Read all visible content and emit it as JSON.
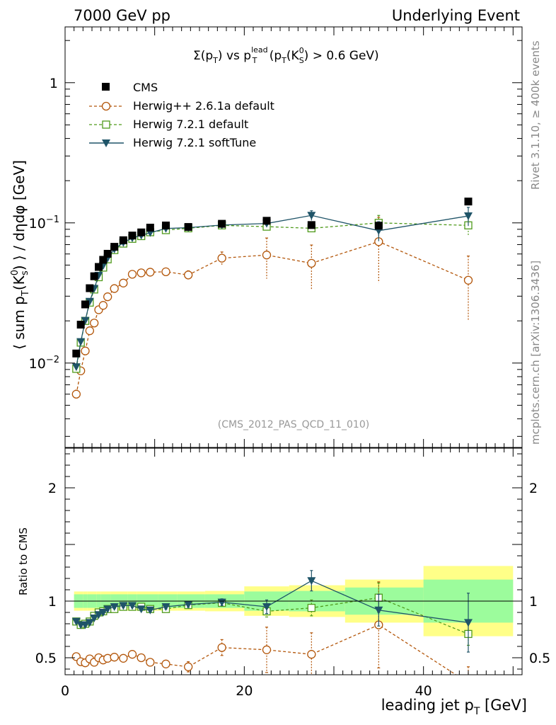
{
  "header": {
    "left": "7000 GeV pp",
    "right": "Underlying Event"
  },
  "side_labels": {
    "rivet": "Rivet 3.1.10, ≥ 400k events",
    "mcplots": "mcplots.cern.ch [arXiv:1306.3436]"
  },
  "plot_title": {
    "part1": "Σ(p",
    "sub1": "T",
    "part2": ") vs p",
    "sup2": "lead",
    "sub2": "T",
    "part3": " (p",
    "sub3": "T",
    "part4": "(K",
    "sup4": "0",
    "sub4": "S",
    "part5": ") > 0.6 GeV)"
  },
  "analysis_id": "(CMS_2012_PAS_QCD_11_010)",
  "ylabel_main": {
    "a": "⟨ sum p",
    "sub_a": "T",
    "b": "(K",
    "sup_b": "0",
    "sub_b": "s",
    "c": ") ⟩ / dηdφ [GeV]"
  },
  "ylabel_ratio": "Ratio to CMS",
  "xlabel": {
    "a": "leading jet p",
    "sub": "T",
    "b": " [GeV]"
  },
  "main_ticks": [
    {
      "value": 1,
      "label": "1"
    },
    {
      "value": 0.1,
      "label": "10",
      "exp": "−1"
    },
    {
      "value": 0.01,
      "label": "10",
      "exp": "−2"
    }
  ],
  "ratio_ticks": [
    {
      "value": 2,
      "label": "2"
    },
    {
      "value": 1,
      "label": "1"
    },
    {
      "value": 0.5,
      "label": "0.5"
    }
  ],
  "x_ticks": [
    {
      "value": 0,
      "label": "0"
    },
    {
      "value": 20,
      "label": "20"
    },
    {
      "value": 40,
      "label": "40"
    }
  ],
  "colors": {
    "cms": "#000000",
    "herwig261": "#b3560a",
    "herwig721": "#4f9a1b",
    "softtune": "#1f5468",
    "band_stat": "#9cfc9c",
    "band_total": "#ffff88"
  },
  "chart_data": {
    "type": "scatter",
    "xlabel": "leading jet pT [GeV]",
    "ylabel": "⟨ sum pT(K0s) ⟩ / dηdφ [GeV]",
    "xlim": [
      0,
      51
    ],
    "ylim_main": [
      0.0025,
      2.5
    ],
    "yscale_main": "log",
    "ylim_ratio": [
      0.35,
      2.35
    ],
    "ratio_reference": "CMS",
    "legend_position": "top-left",
    "x": [
      1.25,
      1.75,
      2.25,
      2.75,
      3.25,
      3.75,
      4.25,
      4.75,
      5.5,
      6.5,
      7.5,
      8.5,
      9.5,
      11.25,
      13.75,
      17.5,
      22.5,
      27.5,
      35,
      45
    ],
    "series": [
      {
        "name": "CMS",
        "marker": "filled-square",
        "values": [
          0.0117,
          0.0188,
          0.0262,
          0.0342,
          0.0416,
          0.0485,
          0.0545,
          0.0602,
          0.0675,
          0.0752,
          0.0812,
          0.0855,
          0.0925,
          0.0958,
          0.0935,
          0.0985,
          0.1035,
          0.0965,
          0.0955,
          0.142
        ],
        "errors": [
          0.0003,
          0.0004,
          0.0005,
          0.0006,
          0.0007,
          0.0008,
          0.0008,
          0.0009,
          0.001,
          0.0011,
          0.0012,
          0.0013,
          0.0014,
          0.0015,
          0.0016,
          0.0018,
          0.002,
          0.003,
          0.0035,
          0.0055
        ],
        "band_stat": [
          0.06,
          0.06,
          0.06,
          0.06,
          0.06,
          0.06,
          0.06,
          0.06,
          0.06,
          0.06,
          0.06,
          0.06,
          0.06,
          0.06,
          0.06,
          0.06,
          0.085,
          0.09,
          0.12,
          0.19
        ],
        "band_total": [
          0.085,
          0.085,
          0.085,
          0.085,
          0.085,
          0.085,
          0.085,
          0.085,
          0.085,
          0.085,
          0.085,
          0.085,
          0.085,
          0.085,
          0.085,
          0.09,
          0.13,
          0.14,
          0.19,
          0.31
        ],
        "ratio": [
          1,
          1,
          1,
          1,
          1,
          1,
          1,
          1,
          1,
          1,
          1,
          1,
          1,
          1,
          1,
          1,
          1,
          1,
          1,
          1
        ]
      },
      {
        "name": "Herwig++ 2.6.1a default",
        "marker": "open-circle",
        "line": "dashed",
        "values": [
          0.006,
          0.0088,
          0.0122,
          0.017,
          0.0193,
          0.024,
          0.0258,
          0.0297,
          0.034,
          0.0372,
          0.043,
          0.044,
          0.0445,
          0.0448,
          0.0425,
          0.056,
          0.059,
          0.0515,
          0.0735,
          0.039
        ],
        "errors": [
          0.0004,
          0.0005,
          0.0006,
          0.0007,
          0.0008,
          0.0009,
          0.0009,
          0.001,
          0.0011,
          0.0012,
          0.0013,
          0.0014,
          0.0015,
          0.002,
          0.003,
          0.006,
          0.019,
          0.018,
          0.036,
          0.019
        ],
        "ratio": [
          0.51,
          0.465,
          0.455,
          0.49,
          0.46,
          0.5,
          0.48,
          0.495,
          0.505,
          0.495,
          0.53,
          0.5,
          0.46,
          0.445,
          0.42,
          0.59,
          0.57,
          0.53,
          0.79,
          0.28
        ],
        "ratio_errors": [
          0.01,
          0.01,
          0.01,
          0.012,
          0.012,
          0.014,
          0.014,
          0.015,
          0.015,
          0.016,
          0.017,
          0.018,
          0.02,
          0.025,
          0.045,
          0.07,
          0.2,
          0.19,
          0.38,
          0.14
        ]
      },
      {
        "name": "Herwig 7.2.1 default",
        "marker": "open-square",
        "line": "dashed",
        "values": [
          0.0091,
          0.014,
          0.02,
          0.027,
          0.0335,
          0.041,
          0.048,
          0.055,
          0.064,
          0.0712,
          0.077,
          0.0805,
          0.0858,
          0.0888,
          0.0915,
          0.096,
          0.094,
          0.0915,
          0.1,
          0.096
        ],
        "errors": [
          0.0002,
          0.0003,
          0.0004,
          0.0005,
          0.0006,
          0.0007,
          0.0007,
          0.0008,
          0.0009,
          0.001,
          0.0011,
          0.0012,
          0.0013,
          0.0014,
          0.0016,
          0.0025,
          0.004,
          0.006,
          0.013,
          0.015
        ],
        "ratio": [
          0.82,
          0.79,
          0.8,
          0.82,
          0.87,
          0.9,
          0.91,
          0.93,
          0.93,
          0.95,
          0.95,
          0.95,
          0.93,
          0.93,
          0.965,
          0.985,
          0.91,
          0.94,
          1.03,
          0.71
        ],
        "ratio_errors": [
          0.015,
          0.015,
          0.015,
          0.015,
          0.015,
          0.015,
          0.015,
          0.015,
          0.015,
          0.016,
          0.016,
          0.016,
          0.017,
          0.02,
          0.025,
          0.03,
          0.05,
          0.07,
          0.13,
          0.1
        ]
      },
      {
        "name": "Herwig 7.2.1 softTune",
        "marker": "filled-triangle-down",
        "line": "solid",
        "values": [
          0.0094,
          0.0142,
          0.0201,
          0.0275,
          0.034,
          0.0422,
          0.0495,
          0.056,
          0.065,
          0.0723,
          0.078,
          0.0815,
          0.0852,
          0.0912,
          0.0925,
          0.0965,
          0.099,
          0.113,
          0.088,
          0.112
        ],
        "errors": [
          0.0002,
          0.0003,
          0.0004,
          0.0005,
          0.0006,
          0.0007,
          0.0007,
          0.0008,
          0.0009,
          0.001,
          0.0011,
          0.0012,
          0.0013,
          0.0014,
          0.0016,
          0.0025,
          0.005,
          0.009,
          0.014,
          0.017
        ],
        "ratio": [
          0.82,
          0.79,
          0.79,
          0.81,
          0.85,
          0.88,
          0.9,
          0.93,
          0.95,
          0.96,
          0.96,
          0.93,
          0.92,
          0.95,
          0.97,
          0.99,
          0.95,
          1.18,
          0.92,
          0.81
        ],
        "ratio_errors": [
          0.015,
          0.015,
          0.015,
          0.015,
          0.015,
          0.015,
          0.015,
          0.015,
          0.015,
          0.016,
          0.016,
          0.016,
          0.017,
          0.02,
          0.025,
          0.03,
          0.06,
          0.09,
          0.14,
          0.26
        ]
      }
    ]
  }
}
